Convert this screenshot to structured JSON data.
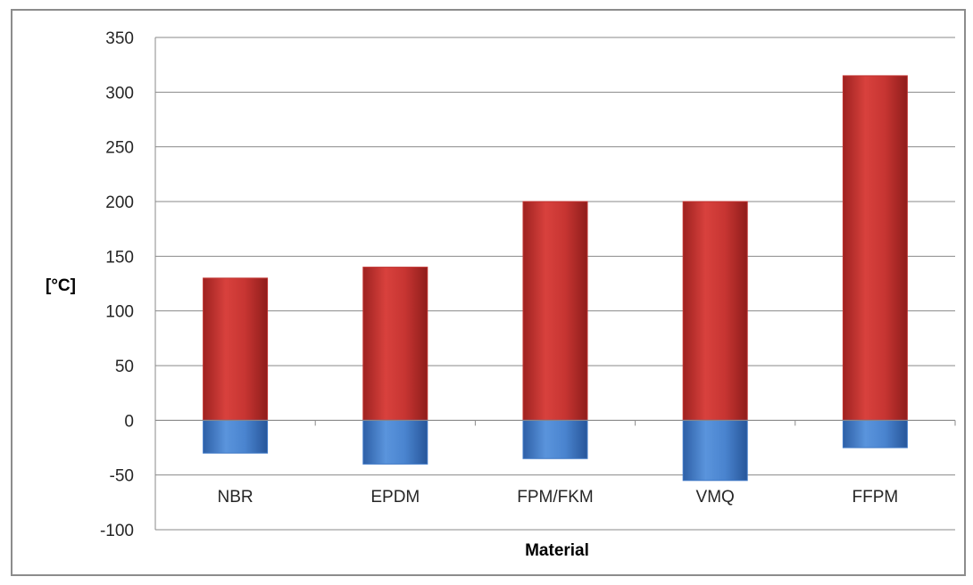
{
  "chart_data": {
    "type": "bar",
    "title": "",
    "xlabel": "Material",
    "ylabel": "[°C]",
    "categories": [
      "NBR",
      "EPDM",
      "FPM/FKM",
      "VMQ",
      "FFPM"
    ],
    "series": [
      {
        "color": "#c0312f",
        "values": [
          130,
          140,
          200,
          200,
          315
        ]
      },
      {
        "color": "#3f78c6",
        "values": [
          -30,
          -40,
          -35,
          -55,
          -25
        ]
      }
    ],
    "ylim": [
      -100,
      350
    ],
    "yticks": [
      -100,
      -50,
      0,
      50,
      100,
      150,
      200,
      250,
      300,
      350
    ],
    "ytick_labels": [
      "-100",
      "-50",
      "0",
      "50",
      "100",
      "150",
      "200",
      "250",
      "300",
      "350"
    ],
    "grid": true,
    "legend": "none"
  }
}
